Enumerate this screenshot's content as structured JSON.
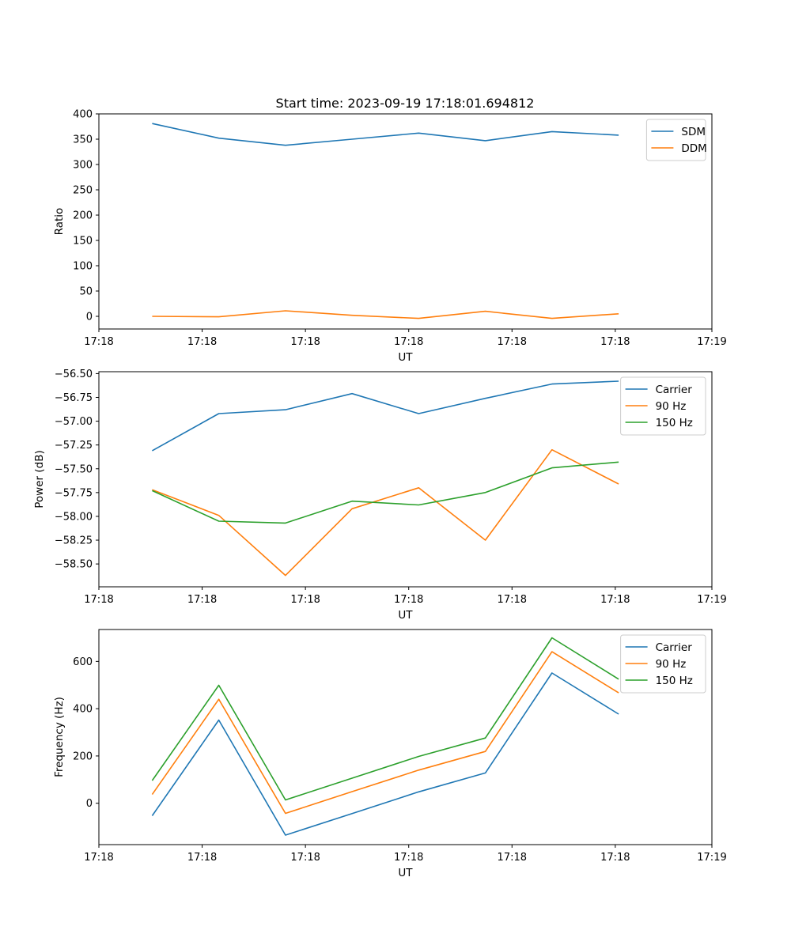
{
  "figure_title": "Start time: 2023-09-19 17:18:01.694812",
  "chart_data": [
    {
      "type": "line",
      "title": "Start time: 2023-09-19 17:18:01.694812",
      "xlabel": "UT",
      "ylabel": "Ratio",
      "x": [
        1,
        2,
        3,
        4,
        5,
        6,
        7,
        8
      ],
      "xlim": [
        0.2,
        9.4
      ],
      "x_ticks": [
        0.2,
        1.75,
        3.3,
        4.85,
        6.4,
        7.95,
        9.4
      ],
      "x_tick_labels": [
        "17:18",
        "17:18",
        "17:18",
        "17:18",
        "17:18",
        "17:18",
        "17:19"
      ],
      "ylim": [
        -25,
        400
      ],
      "y_ticks": [
        0,
        50,
        100,
        150,
        200,
        250,
        300,
        350,
        400
      ],
      "y_tick_labels": [
        "0",
        "50",
        "100",
        "150",
        "200",
        "250",
        "300",
        "350",
        "400"
      ],
      "legend_position": "top-right",
      "series": [
        {
          "name": "SDM",
          "color": "#1f77b4",
          "values": [
            381,
            352,
            338,
            350,
            362,
            347,
            365,
            358
          ]
        },
        {
          "name": "DDM",
          "color": "#ff7f0e",
          "values": [
            0,
            -1,
            11,
            2,
            -4,
            10,
            -4,
            5
          ]
        }
      ]
    },
    {
      "type": "line",
      "title": "",
      "xlabel": "UT",
      "ylabel": "Power (dB)",
      "x": [
        1,
        2,
        3,
        4,
        5,
        6,
        7,
        8
      ],
      "xlim": [
        0.2,
        9.4
      ],
      "x_ticks": [
        0.2,
        1.75,
        3.3,
        4.85,
        6.4,
        7.95,
        9.4
      ],
      "x_tick_labels": [
        "17:18",
        "17:18",
        "17:18",
        "17:18",
        "17:18",
        "17:18",
        "17:19"
      ],
      "ylim": [
        -58.74,
        -56.48
      ],
      "y_ticks": [
        -58.5,
        -58.25,
        -58.0,
        -57.75,
        -57.5,
        -57.25,
        -57.0,
        -56.75,
        -56.5
      ],
      "y_tick_labels": [
        "−58.50",
        "−58.25",
        "−58.00",
        "−57.75",
        "−57.50",
        "−57.25",
        "−57.00",
        "−56.75",
        "−56.50"
      ],
      "legend_position": "top-right",
      "series": [
        {
          "name": "Carrier",
          "color": "#1f77b4",
          "values": [
            -57.31,
            -56.92,
            -56.88,
            -56.71,
            -56.92,
            -56.76,
            -56.61,
            -56.58
          ]
        },
        {
          "name": "90 Hz",
          "color": "#ff7f0e",
          "values": [
            -57.72,
            -57.99,
            -58.62,
            -57.92,
            -57.7,
            -58.25,
            -57.3,
            -57.66
          ]
        },
        {
          "name": "150 Hz",
          "color": "#2ca02c",
          "values": [
            -57.73,
            -58.05,
            -58.07,
            -57.84,
            -57.88,
            -57.75,
            -57.49,
            -57.43
          ]
        }
      ]
    },
    {
      "type": "line",
      "title": "",
      "xlabel": "UT",
      "ylabel": "Frequency (Hz)",
      "x": [
        1,
        2,
        3,
        4,
        5,
        6,
        7,
        8
      ],
      "xlim": [
        0.2,
        9.4
      ],
      "x_ticks": [
        0.2,
        1.75,
        3.3,
        4.85,
        6.4,
        7.95,
        9.4
      ],
      "x_tick_labels": [
        "17:18",
        "17:18",
        "17:18",
        "17:18",
        "17:18",
        "17:18",
        "17:19"
      ],
      "ylim": [
        -175,
        735
      ],
      "y_ticks": [
        0,
        200,
        400,
        600
      ],
      "y_tick_labels": [
        "0",
        "200",
        "400",
        "600"
      ],
      "legend_position": "top-right",
      "series": [
        {
          "name": "Carrier",
          "color": "#1f77b4",
          "values": [
            -53,
            352,
            -135,
            -44,
            48,
            128,
            551,
            377
          ]
        },
        {
          "name": "90 Hz",
          "color": "#ff7f0e",
          "values": [
            37,
            440,
            -43,
            49,
            140,
            219,
            641,
            467
          ]
        },
        {
          "name": "150 Hz",
          "color": "#2ca02c",
          "values": [
            96,
            499,
            14,
            106,
            198,
            276,
            700,
            525
          ]
        }
      ]
    }
  ]
}
